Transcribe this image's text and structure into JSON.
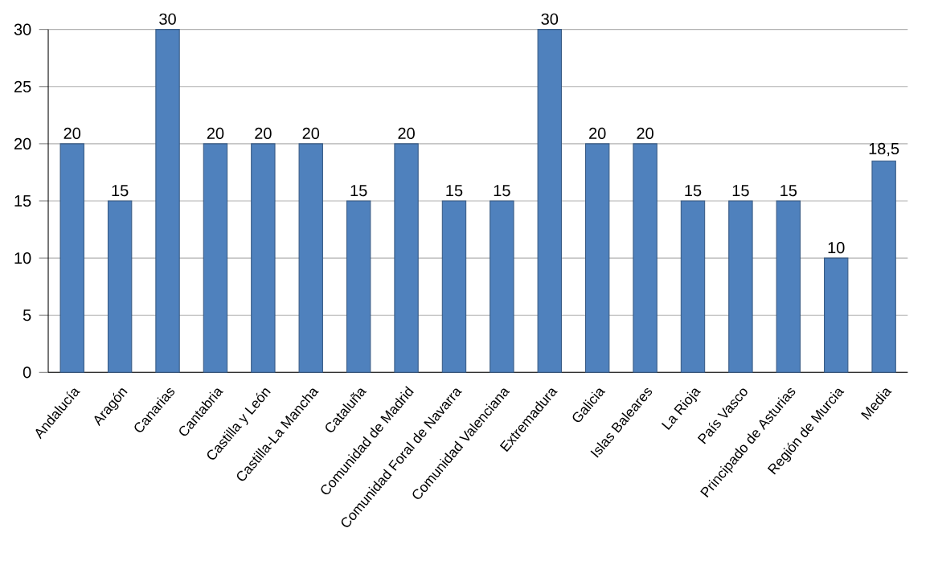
{
  "chart_data": {
    "type": "bar",
    "categories": [
      "Andalucía",
      "Aragón",
      "Canarias",
      "Cantabria",
      "Castilla y León",
      "Castilla-La Mancha",
      "Cataluña",
      "Comunidad de Madrid",
      "Comunidad Foral de Navarra",
      "Comunidad Valenciana",
      "Extremadura",
      "Galicia",
      "Islas Baleares",
      "La Rioja",
      "País Vasco",
      "Principado de Asturias",
      "Región de Murcia",
      "Media"
    ],
    "values": [
      20,
      15,
      30,
      20,
      20,
      20,
      15,
      20,
      15,
      15,
      30,
      20,
      20,
      15,
      15,
      15,
      10,
      18.5
    ],
    "value_labels": [
      "20",
      "15",
      "30",
      "20",
      "20",
      "20",
      "15",
      "20",
      "15",
      "15",
      "30",
      "20",
      "20",
      "15",
      "15",
      "15",
      "10",
      "18,5"
    ],
    "color": "#4f81bd",
    "ylim": [
      0,
      30
    ],
    "yticks": [
      0,
      5,
      10,
      15,
      20,
      25,
      30
    ],
    "grid": "y"
  }
}
